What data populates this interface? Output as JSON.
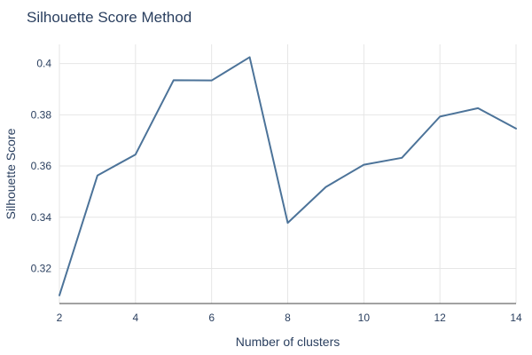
{
  "chart_data": {
    "type": "line",
    "title": "Silhouette Score Method",
    "xlabel": "Number of clusters",
    "ylabel": "Silhouette Score",
    "x": [
      2,
      3,
      4,
      5,
      6,
      7,
      8,
      9,
      10,
      11,
      12,
      13,
      14
    ],
    "series": [
      {
        "values": [
          0.3095,
          0.3563,
          0.3645,
          0.3935,
          0.3934,
          0.4025,
          0.3378,
          0.3518,
          0.3605,
          0.3632,
          0.3793,
          0.3826,
          0.3746
        ]
      }
    ],
    "xlim": [
      2,
      14
    ],
    "ylim": [
      0.3063,
      0.4075
    ],
    "xticks": [
      2,
      4,
      6,
      8,
      10,
      12,
      14
    ],
    "yticks": [
      0.32,
      0.34,
      0.36,
      0.38,
      0.4
    ],
    "ytick_labels": [
      "0.32",
      "0.34",
      "0.36",
      "0.38",
      "0.4"
    ],
    "grid": true,
    "colors": {
      "line": "#4c7399",
      "grid": "#e6e6e6",
      "text": "#2a3f5f",
      "axis": "#444444"
    }
  }
}
